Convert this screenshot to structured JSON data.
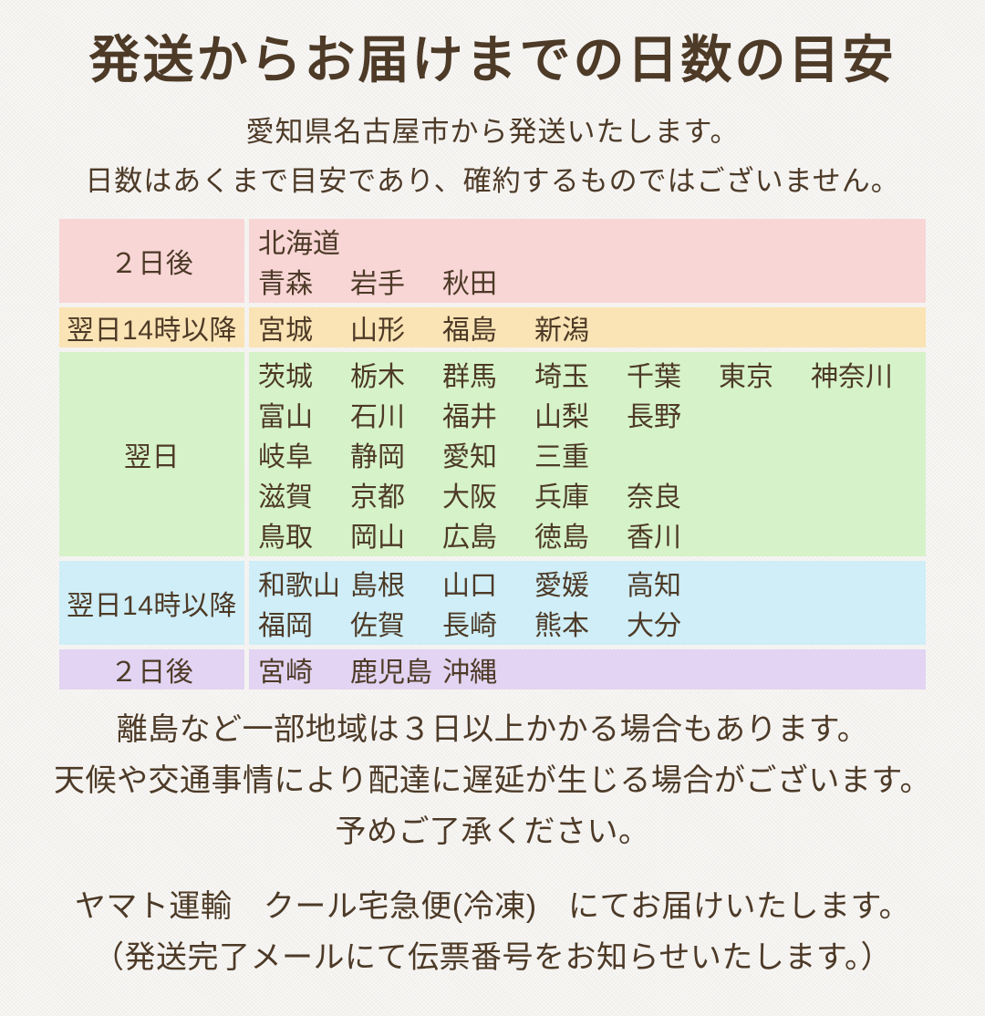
{
  "colors": {
    "background": "#f3f2ef",
    "text": "#4d3a27",
    "row_pink": "#f8d6d6",
    "row_orange": "#fae3b4",
    "row_green": "#d6f2c9",
    "row_blue": "#cfeef7",
    "row_purple": "#e2d4f2"
  },
  "header": {
    "title": "発送からお届けまでの日数の目安",
    "subtitle1": "愛知県名古屋市から発送いたします。",
    "subtitle2": "日数はあくまで目安であり、確約するものではございません。"
  },
  "table": {
    "rows": [
      {
        "label": "２日後",
        "color": "#f8d6d6",
        "lines": [
          [
            "北海道"
          ],
          [
            "青森",
            "岩手",
            "秋田"
          ]
        ]
      },
      {
        "label": "翌日14時以降",
        "color": "#fae3b4",
        "lines": [
          [
            "宮城",
            "山形",
            "福島",
            "新潟"
          ]
        ]
      },
      {
        "label": "翌日",
        "color": "#d6f2c9",
        "lines": [
          [
            "茨城",
            "栃木",
            "群馬",
            "埼玉",
            "千葉",
            "東京",
            "神奈川"
          ],
          [
            "富山",
            "石川",
            "福井",
            "山梨",
            "長野"
          ],
          [
            "岐阜",
            "静岡",
            "愛知",
            "三重"
          ],
          [
            "滋賀",
            "京都",
            "大阪",
            "兵庫",
            "奈良"
          ],
          [
            "鳥取",
            "岡山",
            "広島",
            "徳島",
            "香川"
          ]
        ]
      },
      {
        "label": "翌日14時以降",
        "color": "#cfeef7",
        "lines": [
          [
            "和歌山",
            "島根",
            "山口",
            "愛媛",
            "高知"
          ],
          [
            "福岡",
            "佐賀",
            "長崎",
            "熊本",
            "大分"
          ]
        ]
      },
      {
        "label": "２日後",
        "color": "#e2d4f2",
        "lines": [
          [
            "宮崎",
            "鹿児島",
            "沖縄"
          ]
        ]
      }
    ]
  },
  "notes": [
    "離島など一部地域は３日以上かかる場合もあります。",
    "天候や交通事情により配達に遅延が生じる場合がございます。",
    "予めご了承ください。"
  ],
  "carrier": [
    "ヤマト運輸　クール宅急便(冷凍)　にてお届けいたします。",
    "（発送完了メールにて伝票番号をお知らせいたします。）"
  ]
}
